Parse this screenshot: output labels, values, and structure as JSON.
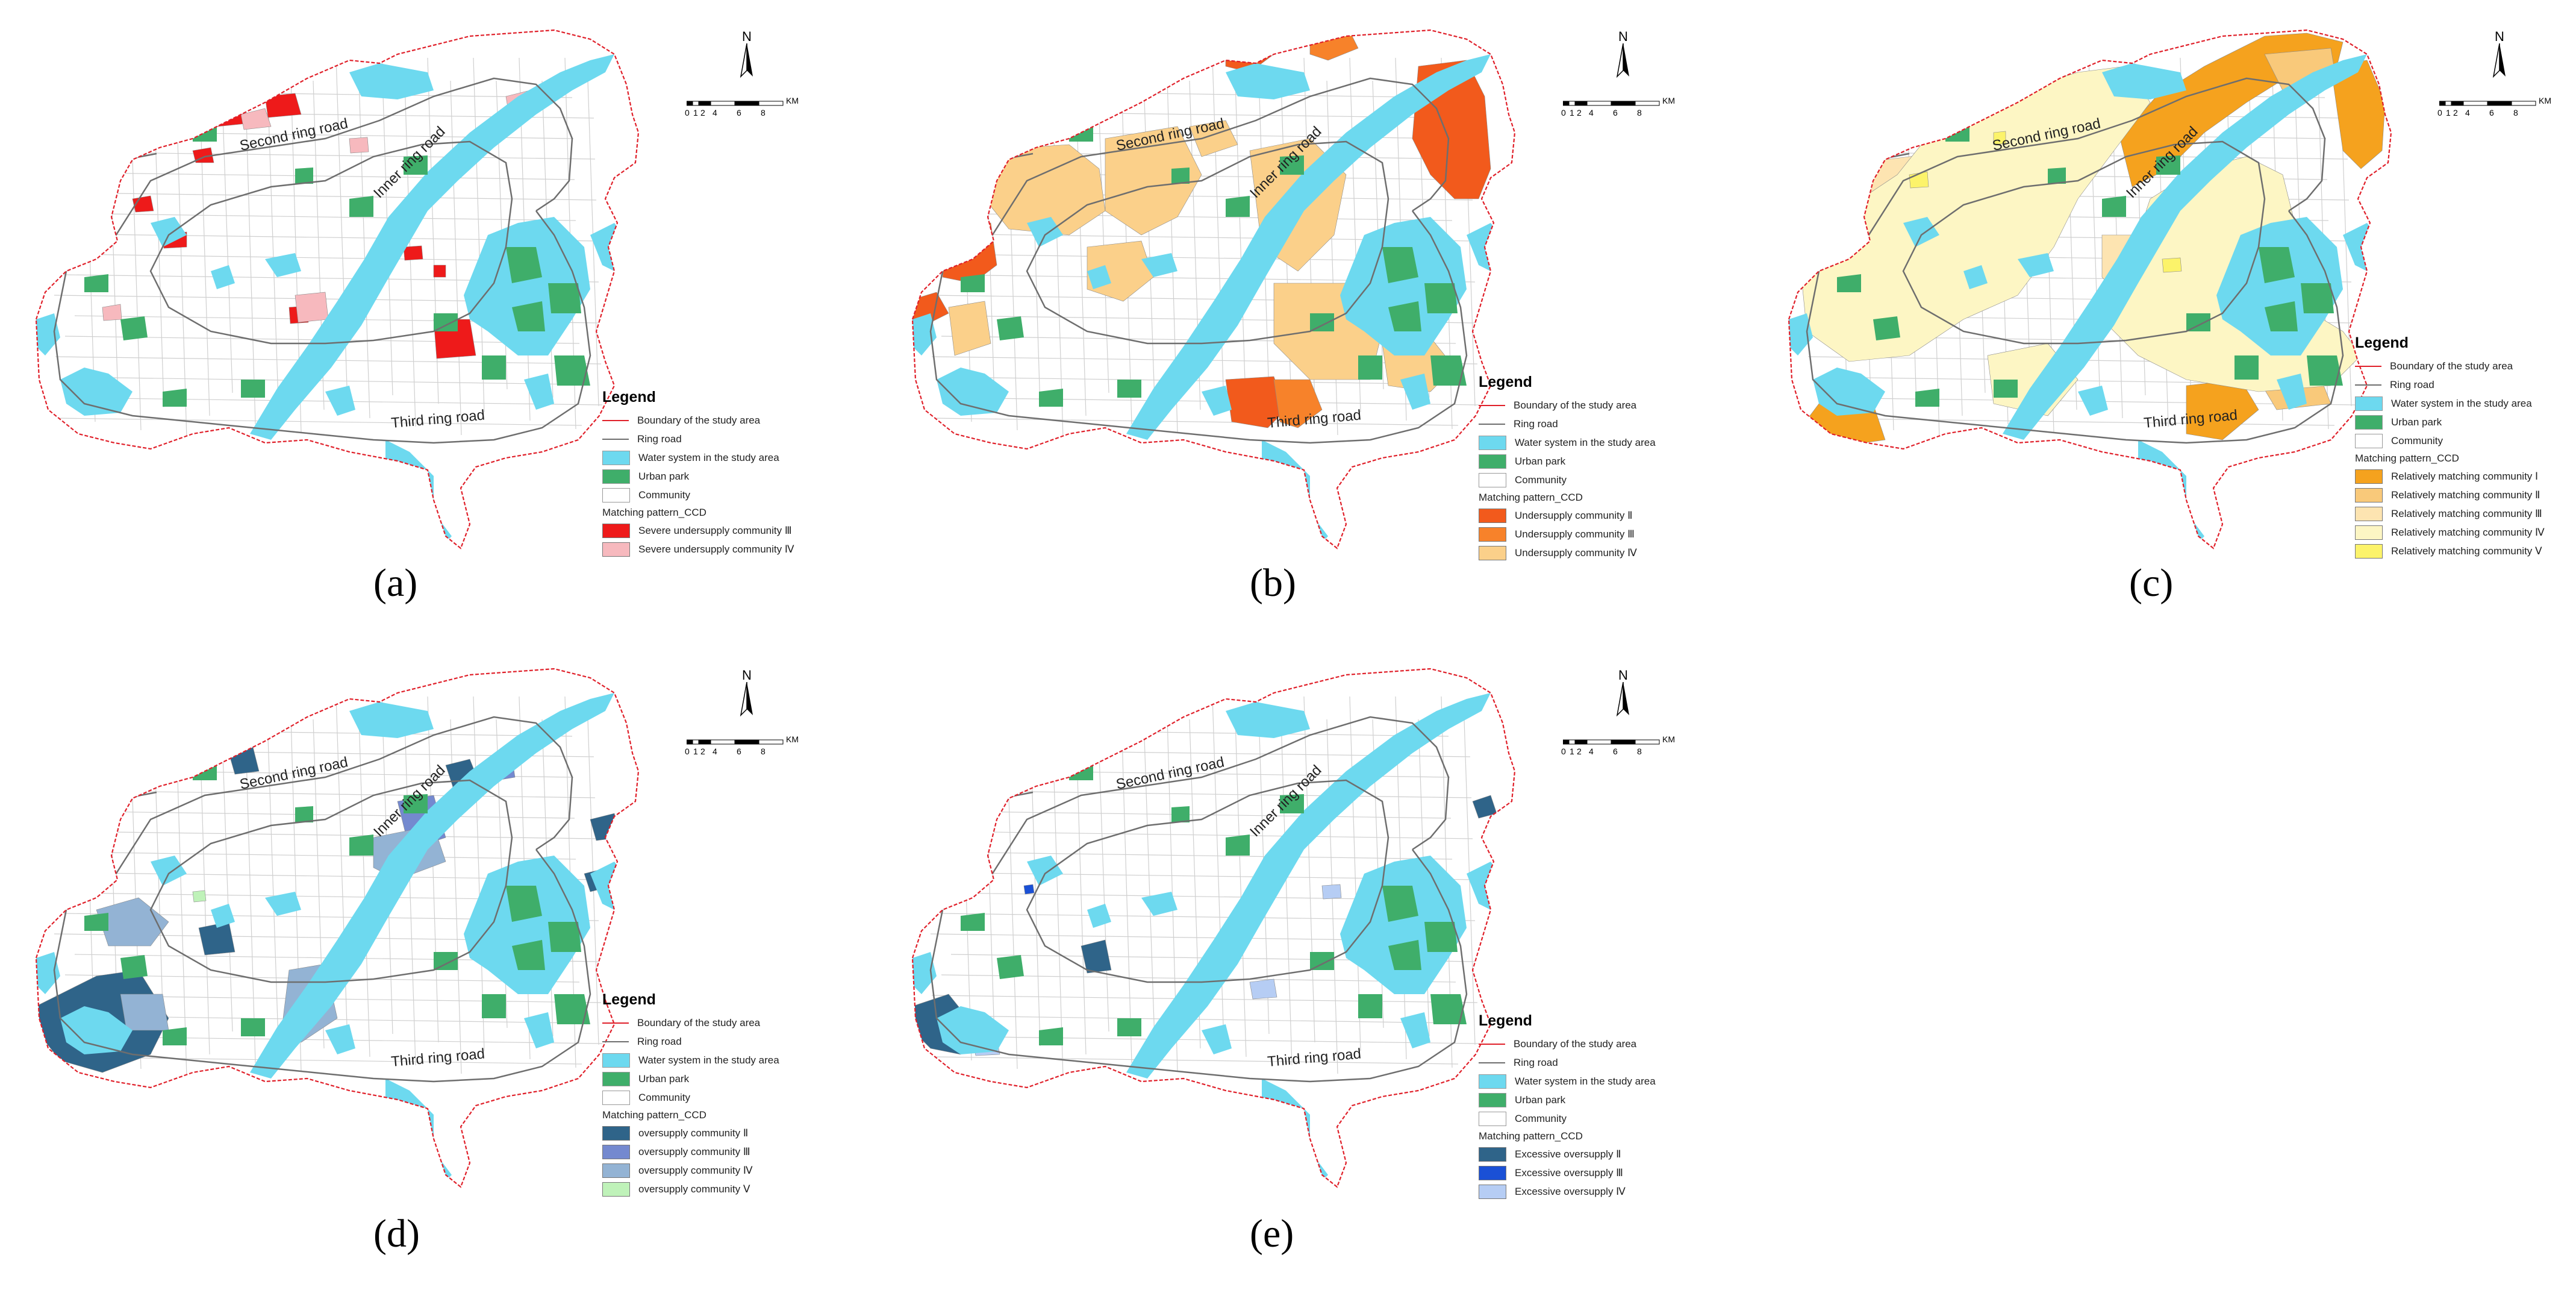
{
  "colors": {
    "boundary": "#e0202a",
    "ring": "#6e6e6e",
    "water": "#6dd9ef",
    "park": "#3fae6a",
    "community": "#ffffff"
  },
  "roads": {
    "second": "Second ring road",
    "inner": "Inner ring road",
    "third": "Third ring road"
  },
  "north_label": "N",
  "scale": {
    "ticks": [
      "0",
      "1",
      "2",
      "4",
      "6",
      "8"
    ],
    "unit": "KM"
  },
  "legend_common": {
    "title": "Legend",
    "boundary": "Boundary of the study area",
    "ring": "Ring road",
    "water": "Water system in the study area",
    "park": "Urban park",
    "community": "Community",
    "pattern_title": "Matching pattern_CCD"
  },
  "panels": [
    {
      "caption": "(a)",
      "classes": [
        {
          "label": "Severe undersupply community Ⅲ",
          "color": "#ee1a1a"
        },
        {
          "label": "Severe undersupply community Ⅳ",
          "color": "#f7b9be"
        }
      ]
    },
    {
      "caption": "(b)",
      "classes": [
        {
          "label": "Undersupply community Ⅱ",
          "color": "#f25a1c"
        },
        {
          "label": "Undersupply community Ⅲ",
          "color": "#f7822a"
        },
        {
          "label": "Undersupply community Ⅳ",
          "color": "#fbd08a"
        }
      ]
    },
    {
      "caption": "(c)",
      "classes": [
        {
          "label": "Relatively matching community Ⅰ",
          "color": "#f5a21e"
        },
        {
          "label": "Relatively matching community Ⅱ",
          "color": "#f9c97a"
        },
        {
          "label": "Relatively matching community Ⅲ",
          "color": "#fde4b1"
        },
        {
          "label": "Relatively matching community Ⅳ",
          "color": "#fdf6c4"
        },
        {
          "label": "Relatively matching community Ⅴ",
          "color": "#fcf36a"
        }
      ]
    },
    {
      "caption": "(d)",
      "classes": [
        {
          "label": "oversupply community Ⅱ",
          "color": "#2f6489"
        },
        {
          "label": "oversupply community Ⅲ",
          "color": "#7489cf"
        },
        {
          "label": "oversupply community Ⅳ",
          "color": "#93b3d4"
        },
        {
          "label": "oversupply community Ⅴ",
          "color": "#bff2b9"
        }
      ]
    },
    {
      "caption": "(e)",
      "classes": [
        {
          "label": "Excessive oversupply Ⅱ",
          "color": "#2f6489"
        },
        {
          "label": "Excessive oversupply Ⅲ",
          "color": "#1a50d6"
        },
        {
          "label": "Excessive oversupply Ⅳ",
          "color": "#b6cdf4"
        }
      ]
    }
  ]
}
